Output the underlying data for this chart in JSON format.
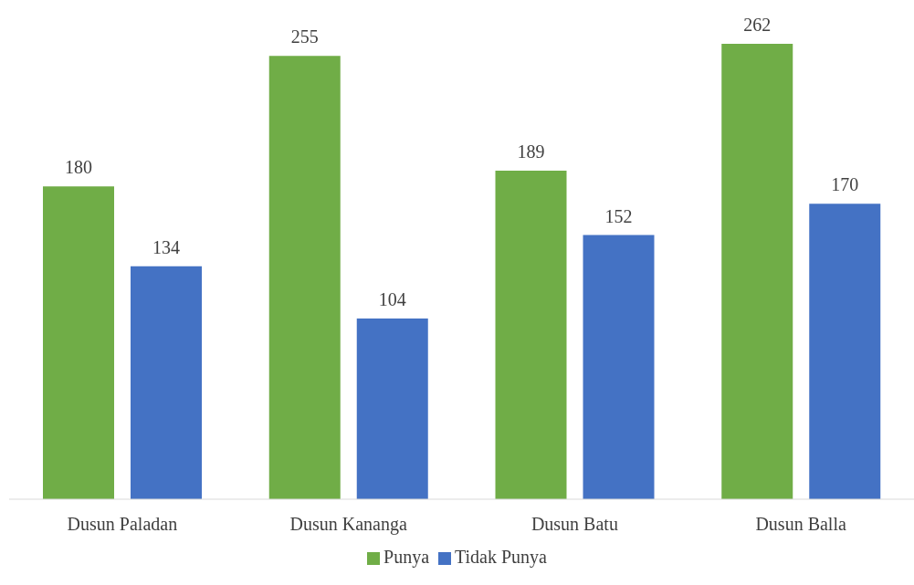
{
  "chart_data": {
    "type": "bar",
    "categories": [
      "Dusun Paladan",
      "Dusun Kananga",
      "Dusun Batu",
      "Dusun Balla"
    ],
    "series": [
      {
        "name": "Punya",
        "color": "#70ad47",
        "values": [
          180,
          255,
          189,
          262
        ]
      },
      {
        "name": "Tidak Punya",
        "color": "#4472c4",
        "values": [
          134,
          104,
          152,
          170
        ]
      }
    ],
    "data_labels": true,
    "grid": false,
    "legend": "bottom"
  }
}
